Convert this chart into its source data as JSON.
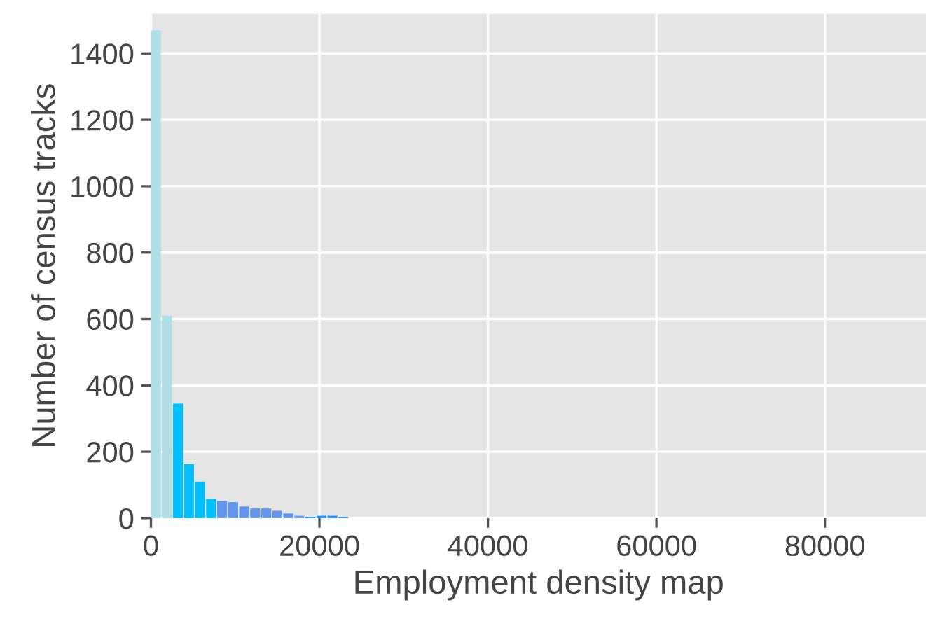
{
  "chart_data": {
    "type": "histogram",
    "xlabel": "Employment density map",
    "ylabel": "Number of census tracks",
    "bins": [
      0,
      1310,
      2620,
      3930,
      5240,
      6550,
      7860,
      9170,
      10480,
      11790,
      13100,
      14410,
      15720,
      17030,
      18340,
      19650,
      20960,
      22270,
      23580
    ],
    "values": [
      1470,
      610,
      345,
      162,
      110,
      58,
      52,
      48,
      35,
      29,
      29,
      22,
      14,
      7,
      4,
      7,
      7,
      3
    ],
    "colors": [
      "#b0e0e6",
      "#b0e0e6",
      "#00bfff",
      "#00bfff",
      "#00bfff",
      "#00bfff",
      "#6495ed",
      "#6495ed",
      "#6495ed",
      "#6495ed",
      "#6495ed",
      "#6495ed",
      "#6495ed",
      "#6495ed",
      "#1e90ff",
      "#1e90ff",
      "#1e90ff",
      "#1e90ff"
    ],
    "xlim": [
      0,
      92000
    ],
    "ylim": [
      0,
      1520
    ],
    "xticks": [
      0,
      20000,
      40000,
      60000,
      80000
    ],
    "yticks": [
      0,
      200,
      400,
      600,
      800,
      1000,
      1200,
      1400
    ],
    "grid": true
  }
}
